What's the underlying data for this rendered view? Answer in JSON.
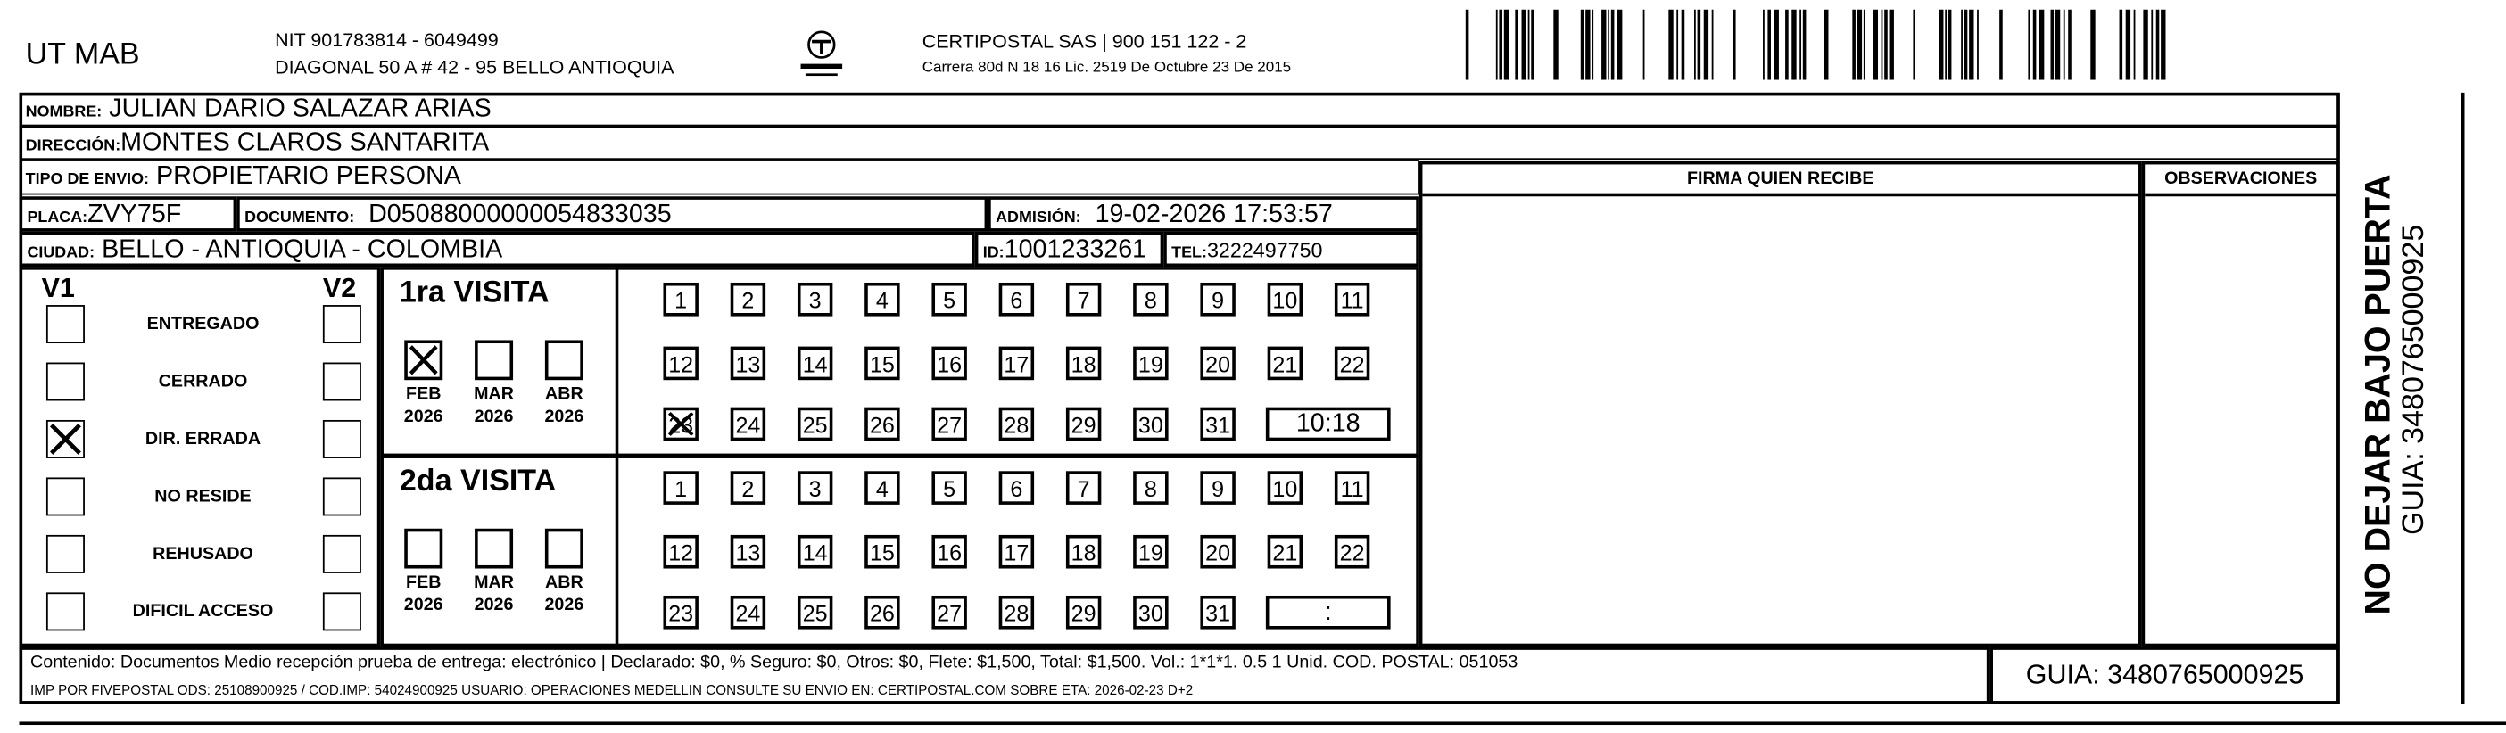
{
  "header": {
    "company": "UT MAB",
    "nit": "NIT 901783814 - 6049499",
    "address": "DIAGONAL 50 A # 42 - 95  BELLO  ANTIOQUIA",
    "logo_text": "CERTIPOSTAL",
    "carrier": "CERTIPOSTAL SAS | 900 151 122 - 2",
    "carrier_license": "Carrera 80d N 18 16  Lic. 2519 De Octubre 23 De 2015"
  },
  "fields": {
    "nombre_label": "NOMBRE:",
    "nombre": "JULIAN DARIO SALAZAR ARIAS",
    "direccion_label": "DIRECCIÓN:",
    "direccion": "MONTES CLAROS SANTARITA",
    "tipo_label": "TIPO DE ENVIO:",
    "tipo": "PROPIETARIO PERSONA",
    "placa_label": "PLACA:",
    "placa": "ZVY75F",
    "documento_label": "DOCUMENTO:",
    "documento": "D05088000000054833035",
    "admision_label": "ADMISIÓN:",
    "admision": "19-02-2026 17:53:57",
    "ciudad_label": "CIUDAD:",
    "ciudad": "BELLO - ANTIOQUIA - COLOMBIA",
    "id_label": "ID:",
    "id": "1001233261",
    "tel_label": "TEL:",
    "tel": "3222497750"
  },
  "firma_header": "FIRMA QUIEN RECIBE",
  "observaciones_header": "OBSERVACIONES",
  "status": {
    "v1": "V1",
    "v2": "V2",
    "items": [
      {
        "label": "ENTREGADO",
        "v1": false,
        "v2": false
      },
      {
        "label": "CERRADO",
        "v1": false,
        "v2": false
      },
      {
        "label": "DIR. ERRADA",
        "v1": true,
        "v2": false
      },
      {
        "label": "NO RESIDE",
        "v1": false,
        "v2": false
      },
      {
        "label": "REHUSADO",
        "v1": false,
        "v2": false
      },
      {
        "label": "DIFICIL ACCESO",
        "v1": false,
        "v2": false
      }
    ]
  },
  "visits": [
    {
      "title": "1ra VISITA",
      "months": [
        {
          "m": "FEB",
          "y": "2026",
          "checked": true
        },
        {
          "m": "MAR",
          "y": "2026",
          "checked": false
        },
        {
          "m": "ABR",
          "y": "2026",
          "checked": false
        }
      ],
      "checked_day": "23",
      "time": "10:18"
    },
    {
      "title": "2da VISITA",
      "months": [
        {
          "m": "FEB",
          "y": "2026",
          "checked": false
        },
        {
          "m": "MAR",
          "y": "2026",
          "checked": false
        },
        {
          "m": "ABR",
          "y": "2026",
          "checked": false
        }
      ],
      "checked_day": "",
      "time": ":"
    }
  ],
  "days": [
    "1",
    "2",
    "3",
    "4",
    "5",
    "6",
    "7",
    "8",
    "9",
    "10",
    "11",
    "12",
    "13",
    "14",
    "15",
    "16",
    "17",
    "18",
    "19",
    "20",
    "21",
    "22",
    "23",
    "24",
    "25",
    "26",
    "27",
    "28",
    "29",
    "30",
    "31"
  ],
  "footer": {
    "line1": "Contenido: Documentos Medio recepción prueba de entrega: electrónico | Declarado: $0, % Seguro: $0, Otros: $0, Flete: $1,500, Total: $1,500. Vol.: 1*1*1. 0.5  1 Unid. COD. POSTAL: 051053",
    "line2": "IMP POR FIVEPOSTAL ODS: 25108900925 / COD.IMP: 54024900925 USUARIO: OPERACIONES MEDELLIN CONSULTE SU ENVIO EN: CERTIPOSTAL.COM SOBRE ETA: 2026-02-23 D+2",
    "guia": "GUIA: 3480765000925"
  },
  "side": {
    "warning": "NO DEJAR BAJO PUERTA",
    "guia": "GUIA: 3480765000925"
  }
}
